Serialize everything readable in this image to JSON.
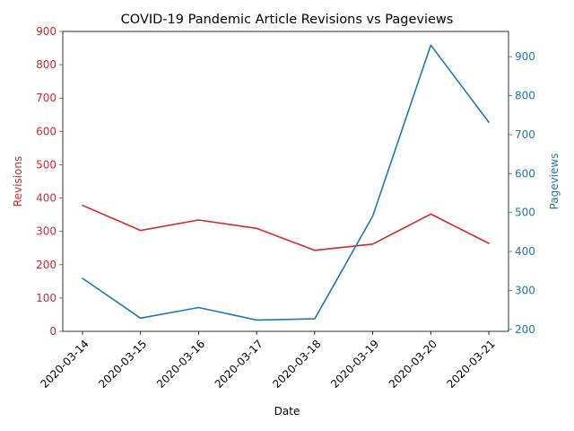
{
  "chart_data": {
    "type": "line",
    "title": "COVID-19 Pandemic Article Revisions vs Pageviews",
    "xlabel": "Date",
    "x": [
      "2020-03-14",
      "2020-03-15",
      "2020-03-16",
      "2020-03-17",
      "2020-03-18",
      "2020-03-19",
      "2020-03-20",
      "2020-03-21"
    ],
    "series": [
      {
        "name": "Revisions",
        "axis": "left",
        "color": "#d62728",
        "values": [
          378,
          303,
          334,
          309,
          243,
          262,
          352,
          264
        ]
      },
      {
        "name": "Pageviews",
        "axis": "right",
        "color": "#1f77b4",
        "values": [
          331,
          229,
          256,
          224,
          227,
          491,
          930,
          732
        ]
      }
    ],
    "y_left": {
      "label": "Revisions",
      "color": "#d62728",
      "lim": [
        0,
        900
      ],
      "ticks": [
        0,
        100,
        200,
        300,
        400,
        500,
        600,
        700,
        800,
        900
      ]
    },
    "y_right": {
      "label": "Pageviews",
      "color": "#1f77b4",
      "lim": [
        195,
        965
      ],
      "ticks": [
        200,
        300,
        400,
        500,
        600,
        700,
        800,
        900
      ]
    },
    "grid": false,
    "legend": "none"
  }
}
